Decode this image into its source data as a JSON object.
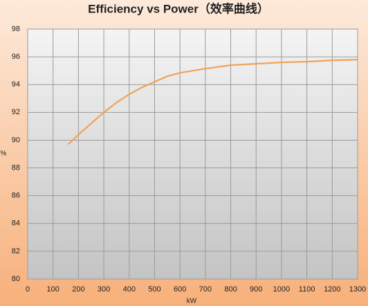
{
  "chart_data": {
    "type": "line",
    "title": "Efficiency vs Power（效率曲线）",
    "x_label": "kW",
    "y_label": "%",
    "x": [
      160,
      200,
      250,
      300,
      350,
      400,
      450,
      500,
      550,
      600,
      700,
      800,
      900,
      1000,
      1100,
      1200,
      1300
    ],
    "series": [
      {
        "name": "Efficiency",
        "color": "#f0a257",
        "values": [
          89.7,
          90.4,
          91.2,
          92.0,
          92.7,
          93.3,
          93.8,
          94.2,
          94.6,
          94.85,
          95.15,
          95.4,
          95.5,
          95.6,
          95.65,
          95.75,
          95.8
        ]
      }
    ],
    "xlim": [
      0,
      1300
    ],
    "xticks": [
      0,
      100,
      200,
      300,
      400,
      500,
      600,
      700,
      800,
      900,
      1000,
      1100,
      1200,
      1300
    ],
    "ylim": [
      80,
      98
    ],
    "yticks": [
      80,
      82,
      84,
      86,
      88,
      90,
      92,
      94,
      96,
      98
    ],
    "grid": true
  }
}
